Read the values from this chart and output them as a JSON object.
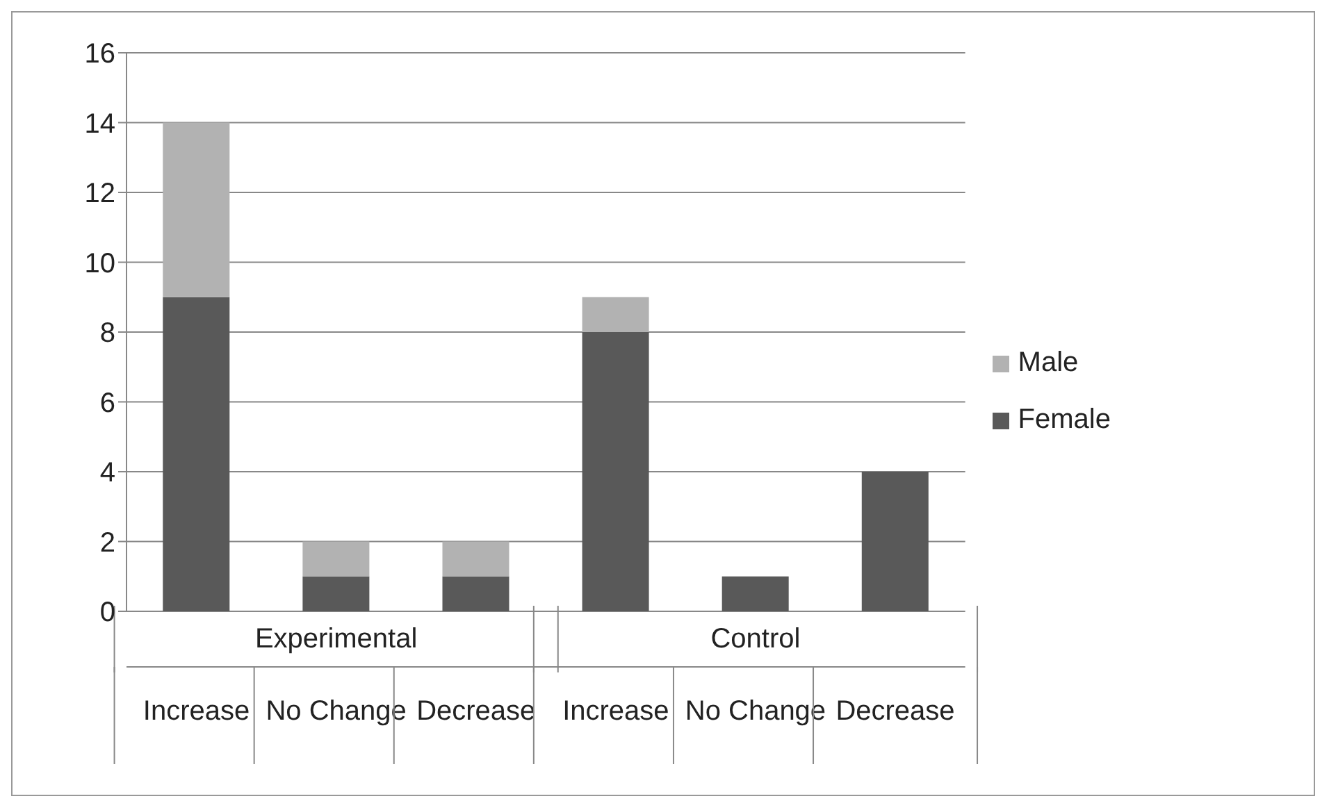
{
  "chart_data": {
    "type": "bar",
    "stacked": true,
    "categories": [
      "Increase",
      "No Change",
      "Decrease",
      "Increase",
      "No Change",
      "Decrease"
    ],
    "annotations": [
      "Experimental",
      "Control"
    ],
    "series": [
      {
        "name": "Female",
        "color": "#595959",
        "values": [
          9,
          1,
          1,
          8,
          1,
          4
        ]
      },
      {
        "name": "Male",
        "color": "#b2b2b2",
        "values": [
          5,
          1,
          1,
          1,
          0,
          0
        ]
      }
    ],
    "ylim": [
      0,
      16
    ],
    "yticks": [
      0,
      2,
      4,
      6,
      8,
      10,
      12,
      14,
      16
    ],
    "grid": "y",
    "legend": "right"
  }
}
